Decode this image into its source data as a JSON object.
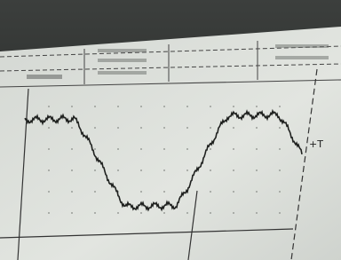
{
  "marker": "+T"
}
